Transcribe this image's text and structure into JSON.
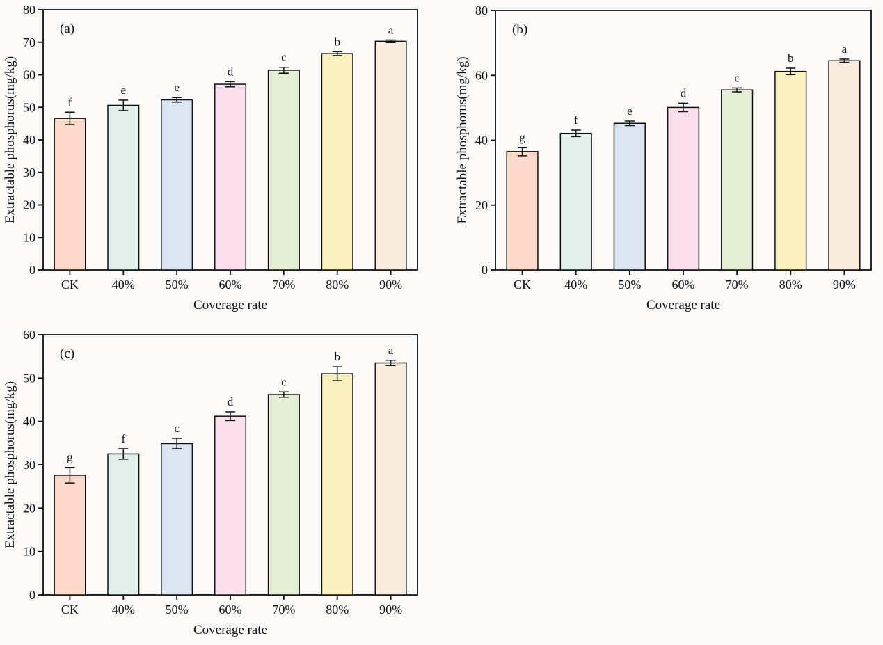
{
  "figure": {
    "background": "#fcfbf9",
    "axis_color": "#111111",
    "text_color": "#111111",
    "bar_palette": [
      "#fbdaca",
      "#dff0ea",
      "#dbe4f1",
      "#fbdfec",
      "#e3eed4",
      "#faf0bd",
      "#faecdc"
    ]
  },
  "chart_data": [
    {
      "type": "bar",
      "panel_label": "(a)",
      "title": "",
      "xlabel": "Coverage rate",
      "ylabel": "Extractable phosphorus(mg/kg)",
      "categories": [
        "CK",
        "40%",
        "50%",
        "60%",
        "70%",
        "80%",
        "90%"
      ],
      "values": [
        46.6,
        50.6,
        52.3,
        57.1,
        61.4,
        66.5,
        70.3
      ],
      "errors": [
        1.9,
        1.6,
        0.7,
        0.8,
        0.9,
        0.6,
        0.4
      ],
      "sig_letters": [
        "f",
        "e",
        "e",
        "d",
        "c",
        "b",
        "a"
      ],
      "ylim": [
        0,
        80
      ],
      "yticks": [
        0,
        10,
        20,
        30,
        40,
        50,
        60,
        70,
        80
      ],
      "grid": false,
      "legend": "none"
    },
    {
      "type": "bar",
      "panel_label": "(b)",
      "title": "",
      "xlabel": "Coverage rate",
      "ylabel": "Extractable phosphorus(mg/kg)",
      "categories": [
        "CK",
        "40%",
        "50%",
        "60%",
        "70%",
        "80%",
        "90%"
      ],
      "values": [
        36.5,
        42.1,
        45.2,
        50.1,
        55.5,
        61.2,
        64.5
      ],
      "errors": [
        1.3,
        1.0,
        0.7,
        1.3,
        0.6,
        1.0,
        0.5
      ],
      "sig_letters": [
        "g",
        "f",
        "e",
        "d",
        "c",
        "b",
        "a"
      ],
      "ylim": [
        0,
        80
      ],
      "yticks": [
        0,
        20,
        40,
        60,
        80
      ],
      "grid": false,
      "legend": "none"
    },
    {
      "type": "bar",
      "panel_label": "(c)",
      "title": "",
      "xlabel": "Coverage rate",
      "ylabel": "Extractable phosphorus(mg/kg)",
      "categories": [
        "CK",
        "40%",
        "50%",
        "60%",
        "70%",
        "80%",
        "90%"
      ],
      "values": [
        27.6,
        32.5,
        34.9,
        41.2,
        46.2,
        51.0,
        53.5
      ],
      "errors": [
        1.8,
        1.2,
        1.2,
        1.0,
        0.6,
        1.6,
        0.6
      ],
      "sig_letters": [
        "g",
        "f",
        "c",
        "d",
        "c",
        "b",
        "a"
      ],
      "ylim": [
        0,
        60
      ],
      "yticks": [
        0,
        10,
        20,
        30,
        40,
        50,
        60
      ],
      "grid": false,
      "legend": "none"
    }
  ]
}
